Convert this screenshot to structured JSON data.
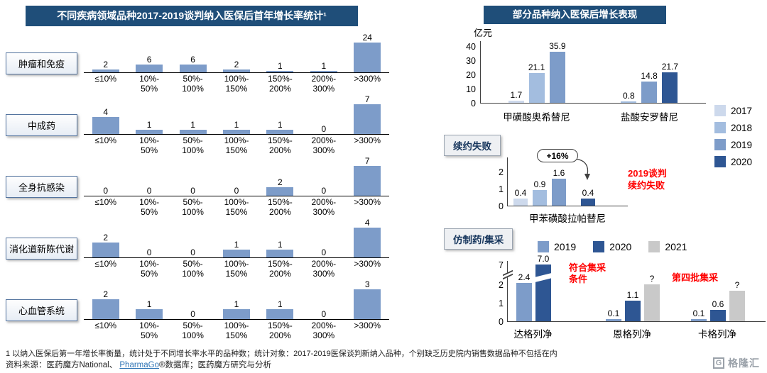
{
  "colors": {
    "banner": "#1f4e79",
    "bar": "#7d9cc9",
    "red": "#ff0000",
    "y2017": "#cdd9ec",
    "y2018": "#a3bddf",
    "y2019": "#7d9cc9",
    "y2020": "#2e5693",
    "y2021": "#c9c9c9"
  },
  "chart_data": [
    {
      "id": "disease_growth",
      "type": "bar",
      "title": "不同疾病领域品种2017-2019谈判纳入医保后首年增长率统计¹",
      "categories": [
        "≤10%",
        "10%-50%",
        "50%-100%",
        "100%-150%",
        "150%-200%",
        "200%-300%",
        ">300%"
      ],
      "categories_display": [
        [
          "≤10%"
        ],
        [
          "10%-",
          "50%"
        ],
        [
          "50%-",
          "100%"
        ],
        [
          "100%-",
          "150%"
        ],
        [
          "150%-",
          "200%"
        ],
        [
          "200%-",
          "300%"
        ],
        [
          ">300%"
        ]
      ],
      "series": [
        {
          "name": "肿瘤和免疫",
          "values": [
            2,
            6,
            6,
            2,
            1,
            1,
            24
          ]
        },
        {
          "name": "中成药",
          "values": [
            4,
            1,
            1,
            1,
            1,
            0,
            7
          ]
        },
        {
          "name": "全身抗感染",
          "values": [
            0,
            0,
            0,
            0,
            2,
            0,
            7
          ]
        },
        {
          "name": "消化道新陈代谢",
          "values": [
            2,
            0,
            0,
            1,
            1,
            0,
            4
          ]
        },
        {
          "name": "心血管系统",
          "values": [
            2,
            1,
            0,
            1,
            1,
            0,
            3
          ]
        }
      ]
    },
    {
      "id": "inclusion_growth",
      "type": "bar",
      "title": "部分品种纳入医保后增长表现",
      "unit": "亿元",
      "y_ticks": [
        0,
        10,
        20,
        30,
        40
      ],
      "ylim": [
        0,
        40
      ],
      "legend": [
        "2017",
        "2018",
        "2019",
        "2020"
      ],
      "legend_position": "right",
      "groups": [
        {
          "label": "甲磺酸奥希替尼",
          "bars": [
            {
              "year": "2017",
              "value": 1.7
            },
            {
              "year": "2018",
              "value": 21.1
            },
            {
              "year": "2019",
              "value": 35.9
            }
          ]
        },
        {
          "label": "盐酸安罗替尼",
          "bars": [
            {
              "year": "2018",
              "value": 0.8
            },
            {
              "year": "2019",
              "value": 14.8
            },
            {
              "year": "2020",
              "value": 21.7
            }
          ]
        }
      ]
    },
    {
      "id": "renewal_failure",
      "type": "bar",
      "tag": "续约失败",
      "y_ticks": [
        0,
        1,
        2
      ],
      "ylim": [
        0,
        2
      ],
      "annotation": "+16%",
      "note_lines": [
        "2019谈判",
        "续约失败"
      ],
      "groups": [
        {
          "label": "甲苯磺酸拉帕替尼",
          "bars": [
            {
              "year": "2017",
              "value": 0.4
            },
            {
              "year": "2018",
              "value": 0.9
            },
            {
              "year": "2019",
              "value": 1.6
            },
            {
              "year": "2020",
              "value": 0.4
            }
          ]
        }
      ]
    },
    {
      "id": "generic_procurement",
      "type": "bar",
      "tag": "仿制药/集采",
      "legend": [
        "2019",
        "2020",
        "2021"
      ],
      "y_ticks": [
        0,
        1,
        2,
        7
      ],
      "axis_break": true,
      "notes": [
        {
          "lines": [
            "符合集采",
            "条件"
          ]
        },
        {
          "lines": [
            "第四批集采"
          ]
        }
      ],
      "groups": [
        {
          "label": "达格列净",
          "bars": [
            {
              "year": "2019",
              "value": 2.4,
              "display": "2.4"
            },
            {
              "year": "2020",
              "value": 7.0,
              "display": "7.0",
              "broken": true
            }
          ]
        },
        {
          "label": "恩格列净",
          "bars": [
            {
              "year": "2019",
              "value": 0.1,
              "display": "0.1"
            },
            {
              "year": "2020",
              "value": 1.1,
              "display": "1.1"
            },
            {
              "year": "2021",
              "value": null,
              "display": "?",
              "est": 2.0
            }
          ]
        },
        {
          "label": "卡格列净",
          "bars": [
            {
              "year": "2019",
              "value": 0.1,
              "display": "0.1"
            },
            {
              "year": "2020",
              "value": 0.6,
              "display": "0.6"
            },
            {
              "year": "2021",
              "value": null,
              "display": "?",
              "est": 1.65
            }
          ]
        }
      ]
    }
  ],
  "footnote": "1 以纳入医保后第一年增长率衡量，统计处于不同增长率水平的品种数；统计对象：2017-2019医保谈判新纳入品种，个别缺乏历史院内销售数据品种不包括在内",
  "source": {
    "prefix": "资料来源：医药魔方National、 ",
    "link": "PharmaGo",
    "suffix": "®数据库；医药魔方研究与分析"
  },
  "logo": {
    "mark": "G",
    "text": "格隆汇"
  }
}
